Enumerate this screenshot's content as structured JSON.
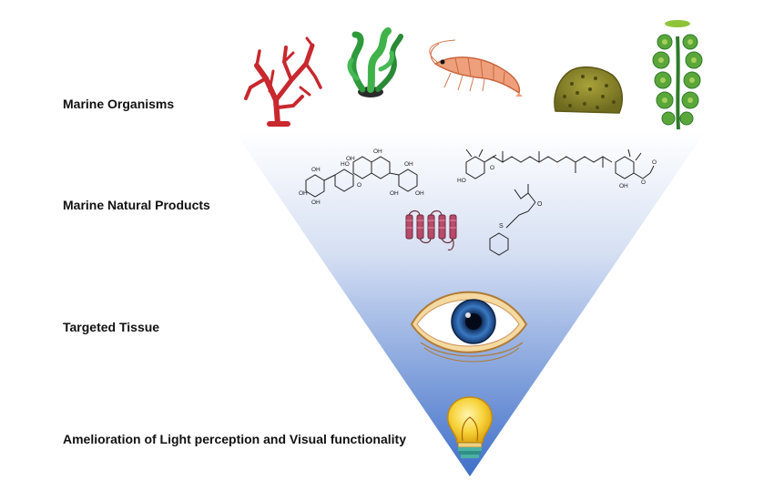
{
  "rows": [
    {
      "label": "Marine Organisms"
    },
    {
      "label": "Marine Natural Products"
    },
    {
      "label": "Targeted Tissue"
    },
    {
      "label": "Amelioration of Light perception and Visual functionality"
    }
  ],
  "icons": {
    "organisms": [
      "red-coral-icon",
      "green-seaweed-icon",
      "krill-icon",
      "sponge-icon",
      "green-alga-icon"
    ],
    "products": [
      "phlorotannin-structure-icon",
      "carotenoid-structure-icon",
      "peptide-helix-icon",
      "sulfur-compound-structure-icon"
    ],
    "tissue": "eye-icon",
    "outcome": "light-bulb-icon"
  },
  "chem_labels": {
    "oh": "OH",
    "ho": "HO",
    "o": "O",
    "s": "S"
  },
  "colors": {
    "funnel_top": "#ffffff",
    "funnel_bottom": "#3f6fc9",
    "coral": "#c8282e",
    "seaweed": "#2e9a3c",
    "krill": "#e8936a",
    "sponge": "#8a8a2a",
    "iris": "#2a5fa0",
    "bulb": "#f6c51b"
  }
}
